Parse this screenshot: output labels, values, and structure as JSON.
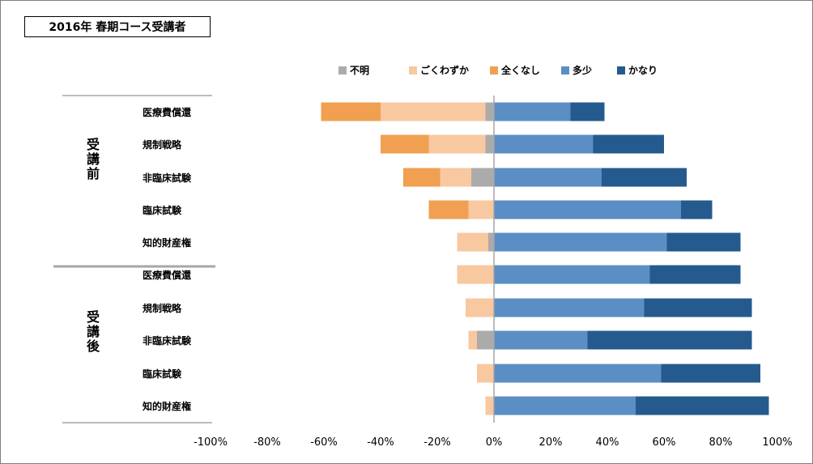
{
  "title": "2016年 春期コース受講者",
  "colors": {
    "unknown": "#ababab",
    "barely": "#f8c8a0",
    "none": "#f0a050",
    "some": "#5b8ec4",
    "much": "#255a8e"
  },
  "chart_data": {
    "type": "bar",
    "orientation": "horizontal-diverging",
    "legend": [
      {
        "key": "unknown",
        "label": "不明"
      },
      {
        "key": "barely",
        "label": "ごくわずか"
      },
      {
        "key": "none",
        "label": "全くなし"
      },
      {
        "key": "some",
        "label": "多少"
      },
      {
        "key": "much",
        "label": "かなり"
      }
    ],
    "legend_position": "top",
    "xlim": [
      -100,
      100
    ],
    "xticks": [
      "-100%",
      "-80%",
      "-60%",
      "-40%",
      "-20%",
      "0%",
      "20%",
      "40%",
      "60%",
      "80%",
      "100%"
    ],
    "groups": [
      {
        "label": "受講前",
        "categories": [
          "医療費償還",
          "規制戦略",
          "非臨床試験",
          "臨床試験",
          "知的財産権"
        ],
        "series": {
          "unknown": [
            -3,
            -3,
            -8,
            0,
            -2
          ],
          "barely": [
            -37,
            -20,
            -11,
            -9,
            -11
          ],
          "none": [
            -21,
            -17,
            -13,
            -14,
            0
          ],
          "some": [
            27,
            35,
            38,
            66,
            61
          ],
          "much": [
            12,
            25,
            30,
            11,
            26
          ]
        }
      },
      {
        "label": "受講後",
        "categories": [
          "医療費償還",
          "規制戦略",
          "非臨床試験",
          "臨床試験",
          "知的財産権"
        ],
        "series": {
          "unknown": [
            0,
            0,
            -6,
            0,
            0
          ],
          "barely": [
            -13,
            -10,
            -3,
            -6,
            -3
          ],
          "none": [
            0,
            0,
            0,
            0,
            0
          ],
          "some": [
            55,
            53,
            33,
            59,
            50
          ],
          "much": [
            32,
            38,
            58,
            35,
            47
          ]
        }
      }
    ]
  }
}
